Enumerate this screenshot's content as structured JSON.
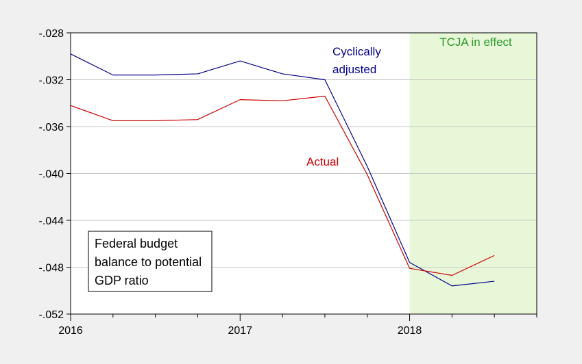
{
  "chart_data": {
    "type": "line",
    "x": [
      "2016Q1",
      "2016Q2",
      "2016Q3",
      "2016Q4",
      "2017Q1",
      "2017Q2",
      "2017Q3",
      "2017Q4",
      "2018Q1",
      "2018Q2",
      "2018Q3"
    ],
    "series": [
      {
        "name": "Cyclically adjusted",
        "color": "#00008b",
        "values": [
          -0.0298,
          -0.0316,
          -0.0316,
          -0.0315,
          -0.0304,
          -0.0315,
          -0.032,
          -0.0394,
          -0.0476,
          -0.0496,
          -0.0492
        ]
      },
      {
        "name": "Actual",
        "color": "#cc0000",
        "values": [
          -0.0342,
          -0.0355,
          -0.0355,
          -0.0354,
          -0.0337,
          -0.0338,
          -0.0334,
          -0.0401,
          -0.0481,
          -0.0487,
          -0.047
        ]
      }
    ],
    "ylim": [
      -0.052,
      -0.028
    ],
    "yticks": [
      -0.028,
      -0.032,
      -0.036,
      -0.04,
      -0.044,
      -0.048,
      -0.052
    ],
    "ytick_labels": [
      "-.028",
      "-.032",
      "-.036",
      "-.040",
      "-.044",
      "-.048",
      "-.052"
    ],
    "xlim": [
      "2016Q1",
      "2018Q4"
    ],
    "xtick_labels": [
      "2016",
      "2017",
      "2018"
    ],
    "grid": true,
    "shaded_region": {
      "label": "TCJA in effect",
      "start": "2018Q1",
      "end": "2018Q4",
      "fill": "#e8f7d8",
      "label_color": "#2a9a2a"
    },
    "annotations": [
      {
        "text": "Cyclically",
        "series": "Cyclically adjusted"
      },
      {
        "text": "adjusted",
        "series": "Cyclically adjusted"
      },
      {
        "text": "Actual",
        "series": "Actual"
      }
    ],
    "legend_box": {
      "lines": [
        "Federal budget",
        "balance to potential",
        "GDP ratio"
      ],
      "placement": "bottom-left"
    }
  }
}
